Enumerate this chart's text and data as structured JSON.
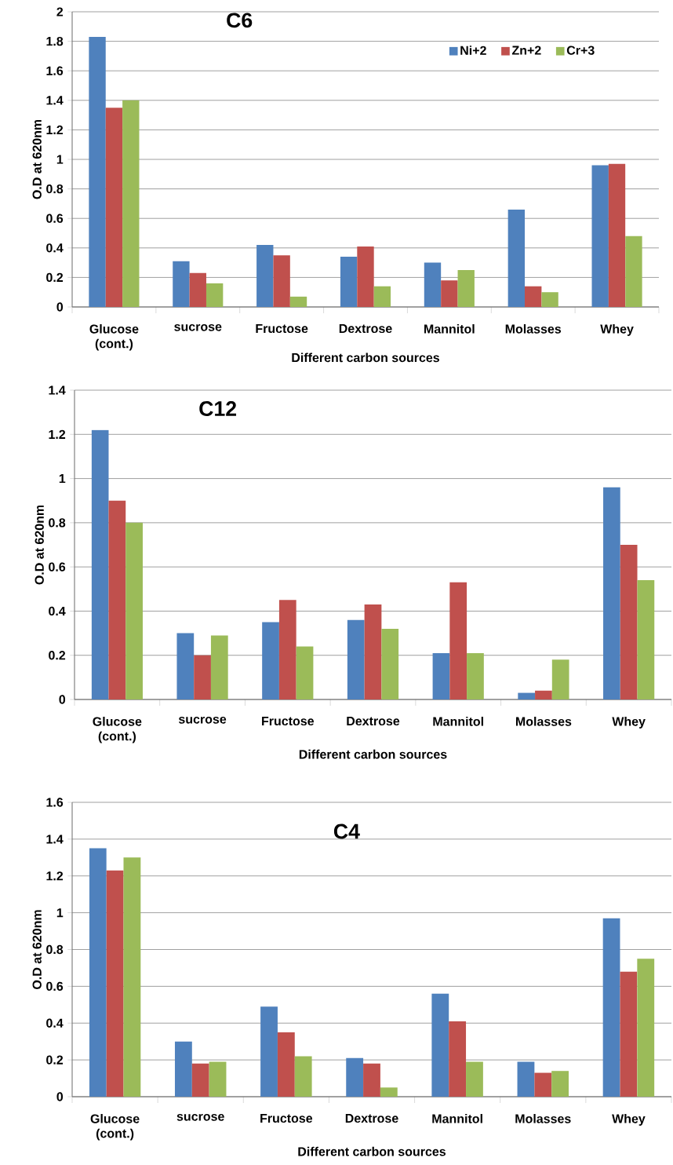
{
  "chart_data": [
    {
      "type": "bar",
      "title": "C6",
      "xlabel": "Different carbon sources",
      "ylabel": "O.D at 620nm",
      "categories": [
        "Glucose (cont.)",
        "sucrose",
        "Fructose",
        "Dextrose",
        "Mannitol",
        "Molasses",
        "Whey"
      ],
      "series": [
        {
          "name": "Ni+2",
          "color": "#4f81bd",
          "values": [
            1.83,
            0.31,
            0.42,
            0.34,
            0.3,
            0.66,
            0.96
          ]
        },
        {
          "name": "Zn+2",
          "color": "#c0504d",
          "values": [
            1.35,
            0.23,
            0.35,
            0.41,
            0.18,
            0.14,
            0.97
          ]
        },
        {
          "name": "Cr+3",
          "color": "#9bbb59",
          "values": [
            1.4,
            0.16,
            0.07,
            0.14,
            0.25,
            0.1,
            0.48
          ]
        }
      ],
      "ylim": [
        0,
        2
      ],
      "yticks": [
        0,
        0.2,
        0.4,
        0.6,
        0.8,
        1,
        1.2,
        1.4,
        1.6,
        1.8,
        2
      ],
      "grid": "y",
      "legend": "top right"
    },
    {
      "type": "bar",
      "title": "C12",
      "xlabel": "Different carbon sources",
      "ylabel": "O.D at 620nm",
      "categories": [
        "Glucose (cont.)",
        "sucrose",
        "Fructose",
        "Dextrose",
        "Mannitol",
        "Molasses",
        "Whey"
      ],
      "series": [
        {
          "color": "#4f81bd",
          "values": [
            1.22,
            0.3,
            0.35,
            0.36,
            0.21,
            0.03,
            0.96
          ]
        },
        {
          "color": "#c0504d",
          "values": [
            0.9,
            0.2,
            0.45,
            0.43,
            0.53,
            0.04,
            0.7
          ]
        },
        {
          "color": "#9bbb59",
          "values": [
            0.8,
            0.29,
            0.24,
            0.32,
            0.21,
            0.18,
            0.54
          ]
        }
      ],
      "ylim": [
        0,
        1.4
      ],
      "yticks": [
        0,
        0.2,
        0.4,
        0.6,
        0.8,
        1,
        1.2,
        1.4
      ],
      "grid": "y"
    },
    {
      "type": "bar",
      "title": "C4",
      "xlabel": "Different carbon sources",
      "ylabel": "O.D at 620nm",
      "categories": [
        "Glucose (cont.)",
        "sucrose",
        "Fructose",
        "Dextrose",
        "Mannitol",
        "Molasses",
        "Whey"
      ],
      "series": [
        {
          "color": "#4f81bd",
          "values": [
            1.35,
            0.3,
            0.49,
            0.21,
            0.56,
            0.19,
            0.97
          ]
        },
        {
          "color": "#c0504d",
          "values": [
            1.23,
            0.18,
            0.35,
            0.18,
            0.41,
            0.13,
            0.68
          ]
        },
        {
          "color": "#9bbb59",
          "values": [
            1.3,
            0.19,
            0.22,
            0.05,
            0.19,
            0.14,
            0.75
          ]
        }
      ],
      "ylim": [
        0,
        1.6
      ],
      "yticks": [
        0,
        0.2,
        0.4,
        0.6,
        0.8,
        1,
        1.2,
        1.4,
        1.6
      ],
      "grid": "y"
    }
  ]
}
